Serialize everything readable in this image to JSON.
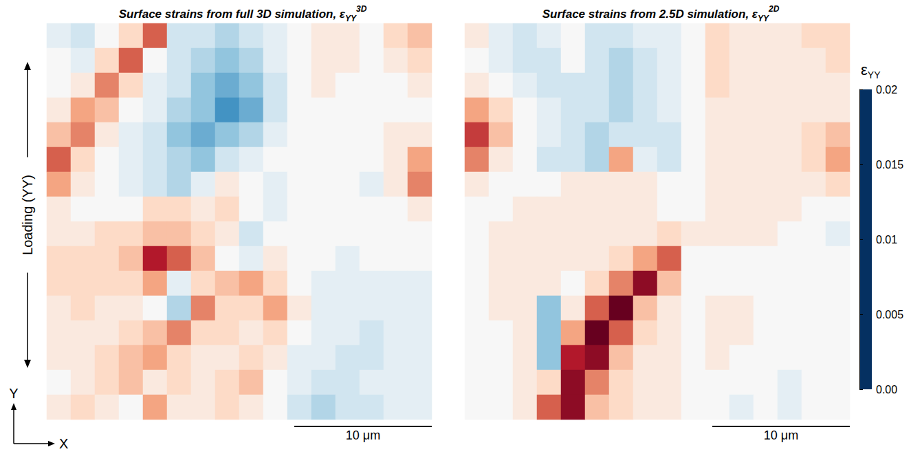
{
  "chart_data": {
    "type": "heatmap",
    "tick_labels": false,
    "panels": [
      {
        "title": {
          "text": "Surface strains from full 3D simulation, ε",
          "sub": "YY",
          "sup": "3D"
        },
        "scale_bar": "10 μm",
        "rows": [
          [
            0.009,
            0.008,
            0.01,
            0.012,
            0.016,
            0.008,
            0.008,
            0.007,
            0.008,
            0.009,
            0.01,
            0.011,
            0.011,
            0.01,
            0.012,
            0.013
          ],
          [
            0.01,
            0.009,
            0.012,
            0.016,
            0.01,
            0.008,
            0.007,
            0.006,
            0.007,
            0.009,
            0.01,
            0.011,
            0.011,
            0.01,
            0.011,
            0.012
          ],
          [
            0.01,
            0.011,
            0.015,
            0.012,
            0.009,
            0.008,
            0.006,
            0.005,
            0.006,
            0.008,
            0.01,
            0.011,
            0.01,
            0.01,
            0.01,
            0.011
          ],
          [
            0.011,
            0.014,
            0.013,
            0.01,
            0.009,
            0.007,
            0.006,
            0.004,
            0.005,
            0.008,
            0.01,
            0.01,
            0.01,
            0.01,
            0.01,
            0.01
          ],
          [
            0.013,
            0.015,
            0.011,
            0.009,
            0.008,
            0.006,
            0.005,
            0.006,
            0.007,
            0.009,
            0.01,
            0.01,
            0.01,
            0.01,
            0.011,
            0.011
          ],
          [
            0.016,
            0.012,
            0.01,
            0.009,
            0.008,
            0.007,
            0.006,
            0.008,
            0.009,
            0.01,
            0.01,
            0.01,
            0.01,
            0.01,
            0.011,
            0.014
          ],
          [
            0.014,
            0.011,
            0.01,
            0.009,
            0.008,
            0.007,
            0.009,
            0.011,
            0.01,
            0.009,
            0.01,
            0.01,
            0.01,
            0.009,
            0.011,
            0.015
          ],
          [
            0.011,
            0.01,
            0.01,
            0.01,
            0.012,
            0.012,
            0.011,
            0.012,
            0.01,
            0.009,
            0.01,
            0.01,
            0.01,
            0.01,
            0.01,
            0.011
          ],
          [
            0.011,
            0.011,
            0.012,
            0.012,
            0.013,
            0.013,
            0.012,
            0.011,
            0.008,
            0.01,
            0.01,
            0.01,
            0.01,
            0.01,
            0.01,
            0.01
          ],
          [
            0.012,
            0.012,
            0.012,
            0.013,
            0.018,
            0.016,
            0.013,
            0.01,
            0.009,
            0.011,
            0.01,
            0.01,
            0.009,
            0.01,
            0.01,
            0.01
          ],
          [
            0.012,
            0.012,
            0.012,
            0.012,
            0.014,
            0.009,
            0.012,
            0.013,
            0.014,
            0.012,
            0.01,
            0.009,
            0.009,
            0.009,
            0.009,
            0.009
          ],
          [
            0.011,
            0.012,
            0.011,
            0.011,
            0.01,
            0.007,
            0.015,
            0.012,
            0.012,
            0.014,
            0.011,
            0.009,
            0.009,
            0.009,
            0.009,
            0.009
          ],
          [
            0.011,
            0.011,
            0.011,
            0.012,
            0.013,
            0.015,
            0.012,
            0.012,
            0.011,
            0.012,
            0.01,
            0.009,
            0.009,
            0.008,
            0.009,
            0.009
          ],
          [
            0.011,
            0.011,
            0.012,
            0.013,
            0.014,
            0.012,
            0.011,
            0.011,
            0.012,
            0.011,
            0.009,
            0.009,
            0.008,
            0.008,
            0.009,
            0.009
          ],
          [
            0.01,
            0.011,
            0.012,
            0.013,
            0.011,
            0.012,
            0.011,
            0.012,
            0.013,
            0.01,
            0.009,
            0.008,
            0.008,
            0.009,
            0.009,
            0.009
          ],
          [
            0.011,
            0.012,
            0.011,
            0.01,
            0.014,
            0.011,
            0.011,
            0.012,
            0.011,
            0.01,
            0.008,
            0.007,
            0.008,
            0.008,
            0.009,
            0.009
          ]
        ]
      },
      {
        "title": {
          "text": "Surface strains from 2.5D simulation, ε",
          "sub": "YY",
          "sup": "2D"
        },
        "scale_bar": "10 μm",
        "rows": [
          [
            0.011,
            0.009,
            0.008,
            0.009,
            0.01,
            0.008,
            0.008,
            0.009,
            0.009,
            0.01,
            0.012,
            0.011,
            0.011,
            0.011,
            0.012,
            0.012
          ],
          [
            0.01,
            0.009,
            0.008,
            0.008,
            0.01,
            0.008,
            0.007,
            0.008,
            0.009,
            0.01,
            0.012,
            0.011,
            0.011,
            0.011,
            0.011,
            0.012
          ],
          [
            0.011,
            0.01,
            0.009,
            0.008,
            0.008,
            0.008,
            0.007,
            0.008,
            0.009,
            0.01,
            0.012,
            0.011,
            0.011,
            0.011,
            0.011,
            0.011
          ],
          [
            0.014,
            0.012,
            0.01,
            0.009,
            0.008,
            0.008,
            0.007,
            0.008,
            0.009,
            0.01,
            0.011,
            0.011,
            0.011,
            0.011,
            0.011,
            0.011
          ],
          [
            0.017,
            0.013,
            0.01,
            0.009,
            0.008,
            0.007,
            0.008,
            0.008,
            0.008,
            0.01,
            0.011,
            0.011,
            0.011,
            0.011,
            0.012,
            0.013
          ],
          [
            0.015,
            0.011,
            0.01,
            0.008,
            0.008,
            0.007,
            0.014,
            0.009,
            0.008,
            0.01,
            0.011,
            0.011,
            0.011,
            0.011,
            0.012,
            0.014
          ],
          [
            0.011,
            0.01,
            0.01,
            0.01,
            0.011,
            0.011,
            0.011,
            0.011,
            0.01,
            0.01,
            0.011,
            0.011,
            0.011,
            0.011,
            0.011,
            0.012
          ],
          [
            0.01,
            0.01,
            0.011,
            0.011,
            0.011,
            0.011,
            0.011,
            0.011,
            0.01,
            0.01,
            0.011,
            0.011,
            0.011,
            0.011,
            0.01,
            0.01
          ],
          [
            0.01,
            0.011,
            0.011,
            0.011,
            0.011,
            0.011,
            0.011,
            0.011,
            0.012,
            0.011,
            0.011,
            0.011,
            0.011,
            0.01,
            0.01,
            0.009
          ],
          [
            0.01,
            0.011,
            0.011,
            0.011,
            0.011,
            0.011,
            0.012,
            0.014,
            0.016,
            0.01,
            0.01,
            0.01,
            0.01,
            0.01,
            0.01,
            0.01
          ],
          [
            0.01,
            0.011,
            0.011,
            0.011,
            0.01,
            0.012,
            0.015,
            0.019,
            0.013,
            0.01,
            0.01,
            0.01,
            0.01,
            0.01,
            0.01,
            0.01
          ],
          [
            0.01,
            0.011,
            0.011,
            0.006,
            0.011,
            0.016,
            0.02,
            0.013,
            0.011,
            0.01,
            0.011,
            0.011,
            0.01,
            0.01,
            0.01,
            0.01
          ],
          [
            0.01,
            0.01,
            0.011,
            0.006,
            0.014,
            0.02,
            0.016,
            0.012,
            0.011,
            0.01,
            0.011,
            0.011,
            0.01,
            0.01,
            0.01,
            0.01
          ],
          [
            0.01,
            0.01,
            0.011,
            0.006,
            0.018,
            0.019,
            0.013,
            0.011,
            0.011,
            0.01,
            0.011,
            0.01,
            0.01,
            0.01,
            0.01,
            0.01
          ],
          [
            0.01,
            0.01,
            0.011,
            0.012,
            0.019,
            0.015,
            0.012,
            0.011,
            0.011,
            0.01,
            0.01,
            0.01,
            0.01,
            0.009,
            0.01,
            0.01
          ],
          [
            0.01,
            0.01,
            0.011,
            0.016,
            0.019,
            0.013,
            0.012,
            0.011,
            0.011,
            0.01,
            0.01,
            0.009,
            0.01,
            0.009,
            0.01,
            0.01
          ]
        ]
      }
    ],
    "colorbar": {
      "title": {
        "text": "ε",
        "sub": "YY"
      },
      "range": [
        0,
        0.02
      ],
      "ticks": [
        {
          "value": 0,
          "label": "0.00"
        },
        0.005,
        0.01,
        0.015,
        0.02
      ],
      "colors": [
        "#053061",
        "#2166ac",
        "#4393c3",
        "#92c5de",
        "#d1e5f0",
        "#f7f7f7",
        "#fddbc7",
        "#f4a582",
        "#d6604d",
        "#b2182b",
        "#67001f"
      ]
    },
    "annotations": {
      "loading": "Loading (YY)",
      "y_axis": "Y",
      "x_axis": "X"
    }
  }
}
